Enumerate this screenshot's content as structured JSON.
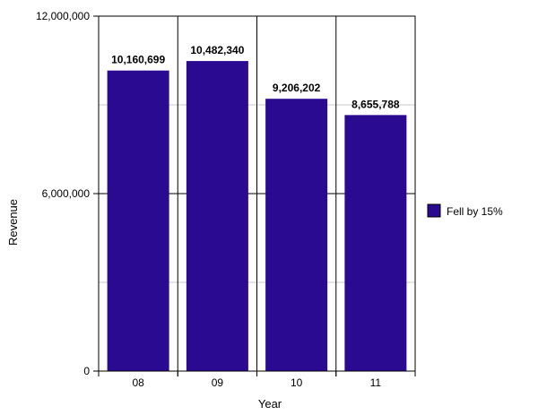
{
  "chart_data": {
    "type": "bar",
    "title": "",
    "xlabel": "Year",
    "ylabel": "Revenue",
    "categories": [
      "08",
      "09",
      "10",
      "11"
    ],
    "series": [
      {
        "name": "Fell by 15%",
        "values": [
          10160699,
          10482340,
          9206202,
          8655788
        ],
        "color": "#2a0a91"
      }
    ],
    "data_labels": [
      "10,160,699",
      "10,482,340",
      "9,206,202",
      "8,655,788"
    ],
    "ylim": [
      0,
      12000000
    ],
    "y_ticks": [
      0,
      6000000,
      12000000
    ],
    "y_tick_labels": [
      "0",
      "6,000,000",
      "12,000,000"
    ],
    "grid": true,
    "legend_position": "right"
  }
}
